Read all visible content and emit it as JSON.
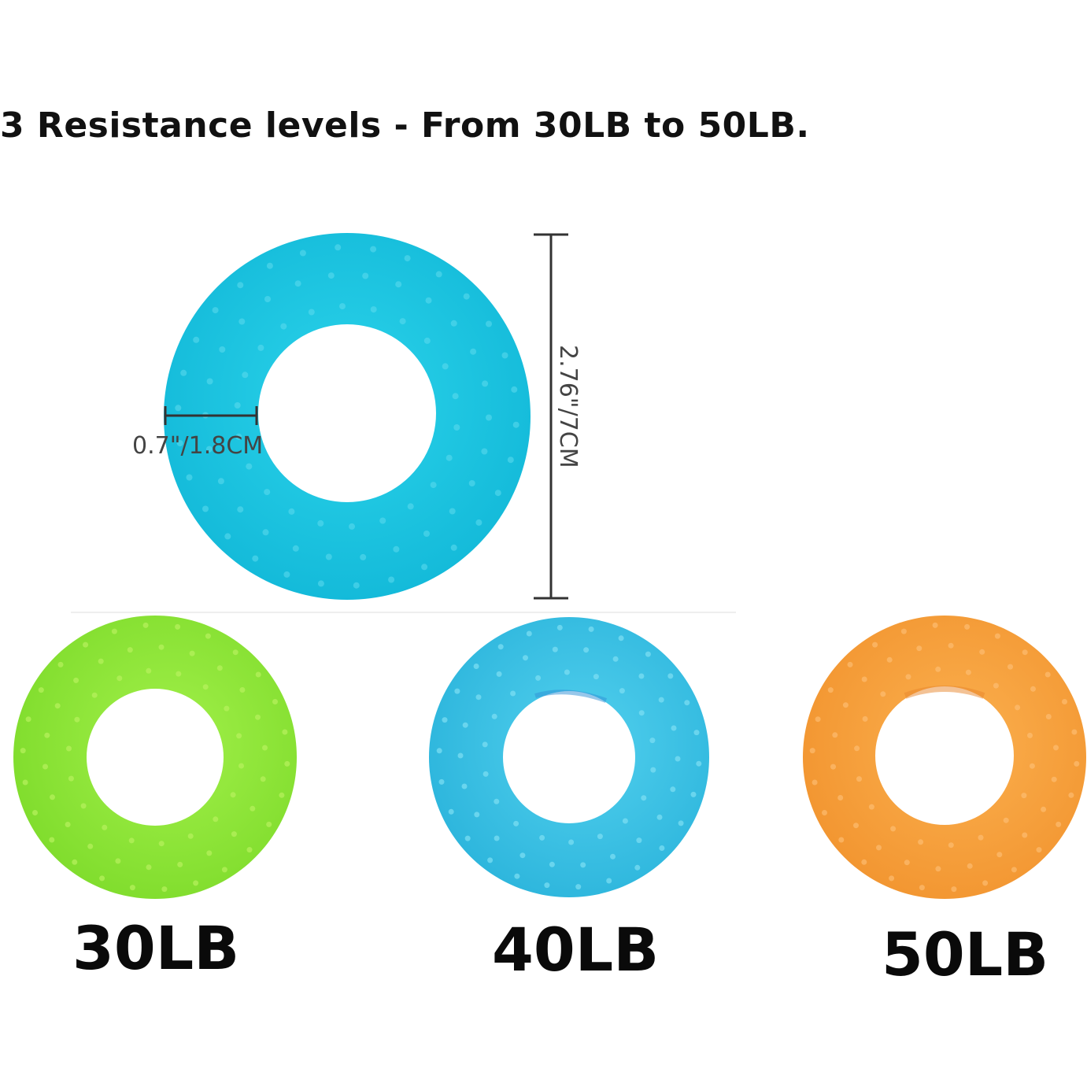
{
  "headline": "3 Resistance levels - From 30LB to 50LB.",
  "dimensions": {
    "thickness": "0.7\"/1.8CM",
    "diameter": "2.76\"/7CM"
  },
  "rings": [
    {
      "label": "30LB",
      "color": "#8ee83a"
    },
    {
      "label": "40LB",
      "color": "#3dc4e4"
    },
    {
      "label": "50LB",
      "color": "#f7a33f"
    }
  ],
  "featured_ring_color": "#1ec5e0",
  "icons": [
    "grip-ring-featured",
    "grip-ring-green",
    "grip-ring-blue",
    "grip-ring-orange"
  ]
}
